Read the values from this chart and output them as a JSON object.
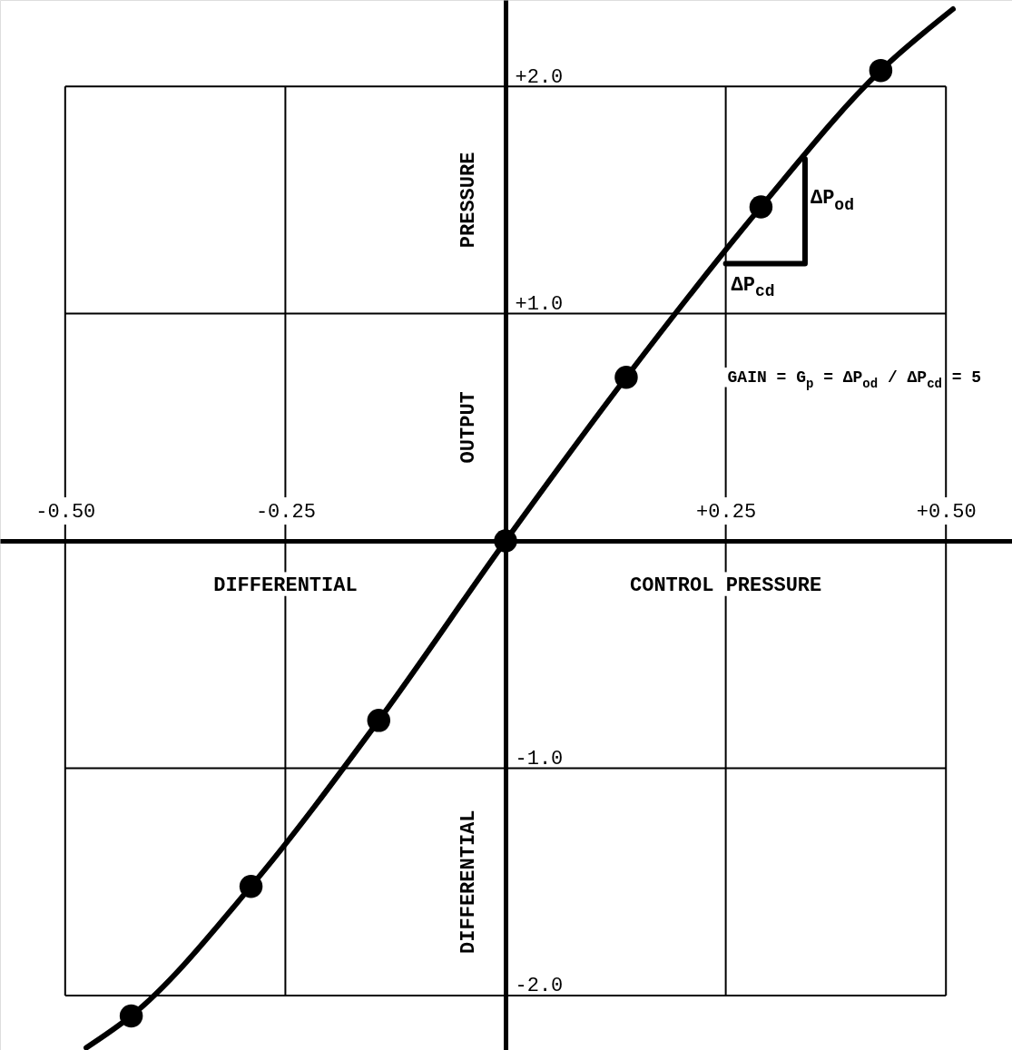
{
  "chart_data": {
    "type": "line",
    "xlabel": "DIFFERENTIAL CONTROL PRESSURE",
    "ylabel": "DIFFERENTIAL OUTPUT PRESSURE",
    "xlim": [
      -0.574,
      0.575
    ],
    "ylim": [
      -2.24,
      2.38
    ],
    "xticks": [
      {
        "value": -0.5,
        "label": "-0.50"
      },
      {
        "value": -0.25,
        "label": "-0.25"
      },
      {
        "value": 0.25,
        "label": "+0.25"
      },
      {
        "value": 0.5,
        "label": "+0.50"
      }
    ],
    "yticks": [
      {
        "value": -2,
        "label": "-2.0"
      },
      {
        "value": -1,
        "label": "-1.0"
      },
      {
        "value": 1,
        "label": "+1.0"
      },
      {
        "value": 2,
        "label": "+2.0"
      }
    ],
    "grid": true,
    "series": [
      {
        "color": "#000000",
        "marker": "none",
        "x": [
          -0.476,
          -0.425,
          -0.289,
          -0.144,
          0,
          0.137,
          0.29,
          0.426,
          0.508
        ],
        "values": [
          -2.23,
          -2.09,
          -1.52,
          -0.79,
          0,
          0.72,
          1.47,
          2.07,
          2.34
        ]
      },
      {
        "type": "scatter",
        "color": "#000000",
        "marker": "circle",
        "x": [
          -0.425,
          -0.289,
          -0.144,
          0,
          0.137,
          0.29,
          0.426
        ],
        "values": [
          -2.09,
          -1.52,
          -0.79,
          0,
          0.72,
          1.47,
          2.07
        ]
      },
      {
        "type": "line",
        "color": "#000000",
        "marker": "none",
        "x": [
          0.25,
          0.34,
          0.34
        ],
        "values": [
          1.22,
          1.22,
          1.68
        ]
      }
    ],
    "annotations": [
      {
        "text": "ΔP$_{od}$",
        "x": 0.34,
        "y": 1.6
      },
      {
        "text": "ΔP$_{cd}$",
        "x": 0.25,
        "y": 1.22
      },
      "GAIN = G$_{p}$ = ΔP$_{od}$ / ΔP$_{cd}$ = 5"
    ]
  }
}
